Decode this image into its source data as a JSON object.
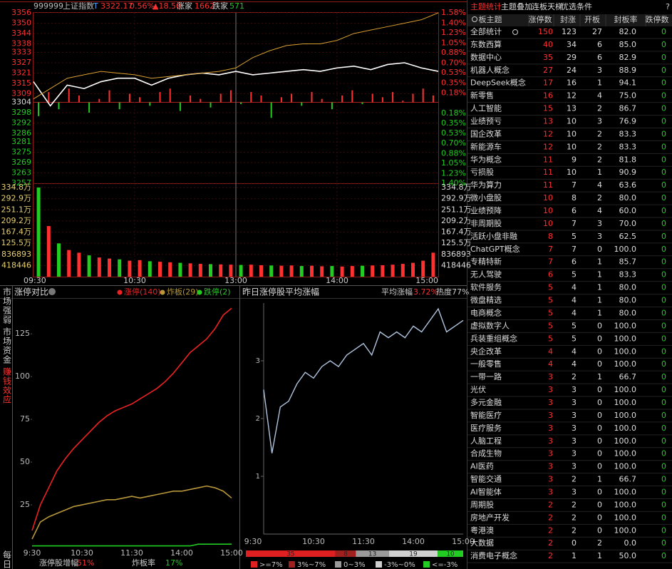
{
  "header": {
    "code": "999999",
    "name": "上证指数",
    "t": "T",
    "price": "3322.17",
    "change_pct": "0.56%",
    "change": "▲18.50",
    "up_label": "涨家",
    "up": "1662",
    "down_label": "跌家",
    "down": "571"
  },
  "index_chart": {
    "type": "line",
    "x": [
      0,
      10,
      20,
      30,
      40,
      50,
      60,
      70,
      80,
      90,
      100,
      110,
      120,
      130,
      140,
      150,
      160,
      170,
      180,
      190,
      200,
      210,
      220,
      230,
      240
    ],
    "series": [
      {
        "color": "#ffffff",
        "values": [
          3316,
          3302,
          3314,
          3312,
          3316,
          3318,
          3318,
          3314,
          3318,
          3320,
          3321,
          3320,
          3322,
          3320,
          3321,
          3322,
          3323,
          3322,
          3324,
          3325,
          3323,
          3326,
          3327,
          3324,
          3322
        ]
      },
      {
        "color": "#d9a030",
        "values": [
          3306,
          3312,
          3318,
          3320,
          3322,
          3321,
          3320,
          3318,
          3319,
          3320,
          3321,
          3322,
          3324,
          3330,
          3334,
          3337,
          3338,
          3338,
          3340,
          3344,
          3346,
          3348,
          3350,
          3352,
          3356
        ]
      }
    ],
    "xlim": [
      0,
      240
    ],
    "xticks": [
      {
        "value": 0,
        "label": "09:30"
      },
      {
        "value": 60,
        "label": "10:30"
      },
      {
        "value": 120,
        "label": "13:00"
      },
      {
        "value": 180,
        "label": "14:00"
      },
      {
        "value": 240,
        "label": "15:00"
      }
    ],
    "ylim": [
      3257,
      3356
    ],
    "yticks": [
      3356,
      3350,
      3344,
      3338,
      3333,
      3327,
      3321,
      3315,
      3309,
      3304,
      3298,
      3292,
      3286,
      3281,
      3275,
      3269,
      3263,
      3257
    ],
    "y2lim": [
      -1.4,
      1.58
    ],
    "y2ticks": [
      {
        "value": 1.58,
        "label": "1.58%"
      },
      {
        "value": 1.4,
        "label": "1.40%"
      },
      {
        "value": 1.23,
        "label": "1.23%"
      },
      {
        "value": 1.05,
        "label": "1.05%"
      },
      {
        "value": 0.88,
        "label": "0.88%"
      },
      {
        "value": 0.7,
        "label": "0.70%"
      },
      {
        "value": 0.53,
        "label": "0.53%"
      },
      {
        "value": 0.35,
        "label": "0.35%"
      },
      {
        "value": 0.18,
        "label": "0.18%"
      },
      {
        "value": -0.18,
        "label": "0.18%"
      },
      {
        "value": -0.35,
        "label": "0.35%"
      },
      {
        "value": -0.53,
        "label": "0.53%"
      },
      {
        "value": -0.7,
        "label": "0.70%"
      },
      {
        "value": -0.88,
        "label": "0.88%"
      },
      {
        "value": -1.05,
        "label": "1.05%"
      },
      {
        "value": -1.23,
        "label": "1.23%"
      },
      {
        "value": -1.4,
        "label": "1.40%"
      }
    ],
    "bars": {
      "x": [
        3,
        9,
        15,
        21,
        27,
        33,
        39,
        45,
        51,
        57,
        63,
        69,
        75,
        81,
        87,
        93,
        99,
        105,
        111,
        117,
        123,
        129,
        135,
        141,
        147,
        153,
        159,
        165,
        171,
        177,
        183,
        189,
        195,
        201,
        207,
        213,
        219,
        225,
        231,
        237
      ],
      "values": [
        3296,
        3310,
        3300,
        3312,
        3308,
        3298,
        3306,
        3311,
        3300,
        3309,
        3307,
        3302,
        3310,
        3312,
        3299,
        3308,
        3306,
        3301,
        3309,
        3311,
        3303,
        3310,
        3308,
        3295,
        3307,
        3309,
        3302,
        3310,
        3306,
        3300,
        3308,
        3311,
        3303,
        3309,
        3307,
        3310,
        3305,
        3309,
        3312,
        3308
      ]
    },
    "volume": {
      "values": [
        3348000,
        1900000,
        1250000,
        1000000,
        900000,
        800000,
        720000,
        680000,
        650000,
        600000,
        620000,
        580000,
        560000,
        540000,
        520000,
        500000,
        480000,
        470000,
        460000,
        450000,
        440000,
        450000,
        430000,
        420000,
        410000,
        420000,
        400000,
        410000,
        390000,
        400000,
        380000,
        400000,
        410000,
        420000,
        430000,
        450000,
        480000,
        520000,
        600000,
        900000
      ],
      "ylim": [
        0,
        3348000
      ],
      "yticks": [
        {
          "value": 3348000,
          "label": "334.8万"
        },
        {
          "value": 2929000,
          "label": "292.9万"
        },
        {
          "value": 2511000,
          "label": "251.1万"
        },
        {
          "value": 2092000,
          "label": "209.2万"
        },
        {
          "value": 1674000,
          "label": "167.4万"
        },
        {
          "value": 1255000,
          "label": "125.5万"
        },
        836893,
        418446
      ]
    }
  },
  "side_tabs": [
    "市场强弱",
    "市场资金",
    "赚钱效应",
    "每日"
  ],
  "limit_chart": {
    "type": "line",
    "title": "涨停对比",
    "x": [
      0,
      10,
      20,
      30,
      40,
      50,
      60,
      70,
      80,
      90,
      100,
      110,
      120,
      130,
      140,
      150,
      160,
      170,
      180,
      190,
      200,
      210,
      220,
      230,
      240
    ],
    "series": [
      {
        "name": "涨停(140)",
        "color": "#ee2222",
        "values": [
          10,
          25,
          35,
          45,
          52,
          58,
          63,
          68,
          73,
          77,
          80,
          82,
          84,
          87,
          90,
          93,
          97,
          102,
          108,
          114,
          118,
          122,
          128,
          136,
          140
        ]
      },
      {
        "name": "炸板(29)",
        "color": "#b8983a",
        "values": [
          5,
          15,
          18,
          20,
          22,
          24,
          25,
          26,
          27,
          28,
          28,
          29,
          30,
          29,
          30,
          31,
          32,
          33,
          33,
          34,
          35,
          36,
          35,
          33,
          29
        ]
      },
      {
        "name": "跌停(2)",
        "color": "#22cc22",
        "values": [
          1,
          1,
          1,
          1,
          1,
          1,
          1,
          1,
          1,
          1,
          1,
          1,
          1,
          1,
          1,
          1,
          1,
          1,
          1,
          1,
          2,
          2,
          2,
          2,
          2
        ]
      }
    ],
    "xlim": [
      0,
      240
    ],
    "xticks": [
      {
        "value": 0,
        "label": "9:30"
      },
      {
        "value": 60,
        "label": "10:30"
      },
      {
        "value": 120,
        "label": "11:30"
      },
      {
        "value": 180,
        "label": "14:00"
      },
      {
        "value": 240,
        "label": "15:00"
      }
    ],
    "ylim": [
      0,
      143
    ],
    "yticks": [
      25,
      50,
      75,
      100,
      125
    ],
    "footer": [
      {
        "label": "涨停股增幅",
        "value": "51%"
      },
      {
        "label": "炸板率",
        "value": "17%"
      }
    ]
  },
  "avg_chart": {
    "type": "line",
    "title": "昨日涨停股平均涨幅",
    "avg_label": "平均涨幅",
    "avg_value": "3.72%",
    "heat": "热度77%",
    "x": [
      0,
      10,
      20,
      30,
      40,
      50,
      60,
      70,
      80,
      90,
      100,
      110,
      120,
      130,
      140,
      150,
      160,
      170,
      180,
      190,
      200,
      210,
      220,
      230,
      240
    ],
    "series": [
      {
        "color": "#b0c4de",
        "values": [
          2.5,
          1.4,
          2.2,
          2.3,
          2.6,
          2.8,
          2.7,
          2.9,
          3.0,
          2.9,
          3.1,
          3.2,
          3.3,
          3.1,
          3.5,
          3.4,
          3.5,
          3.4,
          3.6,
          3.5,
          3.7,
          3.9,
          3.5,
          3.6,
          3.7
        ]
      }
    ],
    "xlim": [
      0,
      240
    ],
    "xticks": [
      {
        "value": 0,
        "label": "9:30"
      },
      {
        "value": 60,
        "label": "10:30"
      },
      {
        "value": 120,
        "label": "11:30"
      },
      {
        "value": 180,
        "label": "14:00"
      },
      {
        "value": 240,
        "label": "15:00"
      }
    ],
    "ylim": [
      0,
      4
    ],
    "yticks": [
      1,
      2,
      3
    ],
    "distribution": {
      "values": [
        35,
        8,
        13,
        19,
        10
      ],
      "colors": [
        "#e02020",
        "#a02020",
        "#9a9a9a",
        "#cfcfcf",
        "#22cc22"
      ],
      "labels": [
        ">=7%",
        "3%~7%",
        "0~3%",
        "-3%~0%",
        "<=-3%"
      ]
    }
  },
  "table": {
    "tabs": [
      "主题统计",
      "主题叠加",
      "连板天梯",
      "优选条件"
    ],
    "help": "?",
    "columns": [
      "板主题",
      "涨停数",
      "封涨",
      "开板",
      "封板率",
      "跌停数"
    ],
    "rows": [
      [
        "全部统计",
        "150",
        "123",
        "27",
        "82.0",
        "0"
      ],
      [
        "东数西算",
        "40",
        "34",
        "6",
        "85.0",
        "0"
      ],
      [
        "数据中心",
        "35",
        "29",
        "6",
        "82.9",
        "0"
      ],
      [
        "机器人概念",
        "27",
        "24",
        "3",
        "88.9",
        "0"
      ],
      [
        "DeepSeek概念",
        "17",
        "16",
        "1",
        "94.1",
        "0"
      ],
      [
        "新零售",
        "16",
        "12",
        "4",
        "75.0",
        "0"
      ],
      [
        "人工智能",
        "15",
        "13",
        "2",
        "86.7",
        "0"
      ],
      [
        "业绩预亏",
        "13",
        "10",
        "3",
        "76.9",
        "0"
      ],
      [
        "国企改革",
        "12",
        "10",
        "2",
        "83.3",
        "0"
      ],
      [
        "新能源车",
        "12",
        "10",
        "2",
        "83.3",
        "0"
      ],
      [
        "华为概念",
        "11",
        "9",
        "2",
        "81.8",
        "0"
      ],
      [
        "亏损股",
        "11",
        "10",
        "1",
        "90.9",
        "0"
      ],
      [
        "华为算力",
        "11",
        "7",
        "4",
        "63.6",
        "0"
      ],
      [
        "微小盘股",
        "10",
        "8",
        "2",
        "80.0",
        "0"
      ],
      [
        "业绩预降",
        "10",
        "6",
        "4",
        "60.0",
        "0"
      ],
      [
        "非周期股",
        "10",
        "7",
        "3",
        "70.0",
        "0"
      ],
      [
        "活跃小盘非融",
        "8",
        "5",
        "3",
        "62.5",
        "0"
      ],
      [
        "ChatGPT概念",
        "7",
        "7",
        "0",
        "100.0",
        "0"
      ],
      [
        "专精特新",
        "7",
        "6",
        "1",
        "85.7",
        "0"
      ],
      [
        "无人驾驶",
        "6",
        "5",
        "1",
        "83.3",
        "0"
      ],
      [
        "软件服务",
        "5",
        "4",
        "1",
        "80.0",
        "0"
      ],
      [
        "微盘精选",
        "5",
        "4",
        "1",
        "80.0",
        "0"
      ],
      [
        "电商概念",
        "5",
        "4",
        "1",
        "80.0",
        "0"
      ],
      [
        "虚拟数字人",
        "5",
        "5",
        "0",
        "100.0",
        "0"
      ],
      [
        "兵装重组概念",
        "5",
        "5",
        "0",
        "100.0",
        "0"
      ],
      [
        "央企改革",
        "4",
        "4",
        "0",
        "100.0",
        "0"
      ],
      [
        "一般零售",
        "4",
        "4",
        "0",
        "100.0",
        "0"
      ],
      [
        "一带一路",
        "3",
        "2",
        "1",
        "66.7",
        "0"
      ],
      [
        "光伏",
        "3",
        "3",
        "0",
        "100.0",
        "0"
      ],
      [
        "多元金融",
        "3",
        "3",
        "0",
        "100.0",
        "0"
      ],
      [
        "智能医疗",
        "3",
        "3",
        "0",
        "100.0",
        "0"
      ],
      [
        "医疗服务",
        "3",
        "3",
        "0",
        "100.0",
        "0"
      ],
      [
        "人脑工程",
        "3",
        "3",
        "0",
        "100.0",
        "0"
      ],
      [
        "合成生物",
        "3",
        "3",
        "0",
        "100.0",
        "0"
      ],
      [
        "AI医药",
        "3",
        "3",
        "0",
        "100.0",
        "0"
      ],
      [
        "智能交通",
        "3",
        "2",
        "1",
        "66.7",
        "0"
      ],
      [
        "AI智能体",
        "3",
        "3",
        "0",
        "100.0",
        "0"
      ],
      [
        "周期股",
        "2",
        "2",
        "0",
        "100.0",
        "0"
      ],
      [
        "房地产开发",
        "2",
        "2",
        "0",
        "100.0",
        "0"
      ],
      [
        "粤港澳",
        "2",
        "2",
        "0",
        "100.0",
        "0"
      ],
      [
        "大数据",
        "2",
        "0",
        "2",
        "0.0",
        "0"
      ],
      [
        "消费电子概念",
        "2",
        "1",
        "1",
        "50.0",
        "0"
      ]
    ]
  }
}
